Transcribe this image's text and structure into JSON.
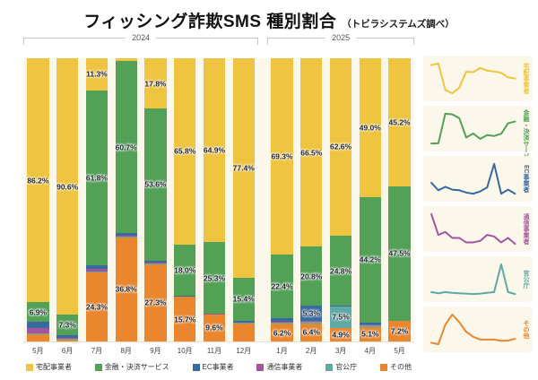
{
  "title": "フィッシング詐欺SMS 種別割合",
  "subtitle": "（トビラシステムズ調べ）",
  "year_groups": [
    {
      "label": "2024",
      "span": 8
    },
    {
      "label": "2025",
      "span": 5
    }
  ],
  "chart_data": {
    "type": "bar",
    "variant": "100-percent-stacked-column-with-sparklines",
    "title": "フィッシング詐欺SMS 種別割合",
    "subtitle": "（トビラシステムズ調べ）",
    "categories": [
      "5月",
      "6月",
      "7月",
      "8月",
      "9月",
      "10月",
      "11月",
      "12月",
      "1月",
      "2月",
      "3月",
      "4月",
      "5月"
    ],
    "year_split_index": 8,
    "ylim": [
      0,
      100
    ],
    "legend_position": "bottom",
    "stack_order_bottom_to_top": [
      "sonota",
      "kankocho",
      "tsushin",
      "ec",
      "kinyu",
      "takuhai"
    ],
    "series": [
      {
        "key": "takuhai",
        "name": "宅配事業者",
        "color": "#efc440",
        "values": [
          86.2,
          90.6,
          11.3,
          1.0,
          17.8,
          65.8,
          64.9,
          77.4,
          69.3,
          66.5,
          62.6,
          49.0,
          45.2
        ]
      },
      {
        "key": "kinyu",
        "name": "金融・決済サービス",
        "color": "#53a057",
        "values": [
          6.9,
          7.3,
          61.8,
          60.7,
          53.6,
          18.0,
          25.3,
          15.4,
          22.4,
          20.8,
          24.8,
          44.2,
          47.5
        ]
      },
      {
        "key": "ec",
        "name": "EC事業者",
        "color": "#39699f",
        "values": [
          2.0,
          0.7,
          1.3,
          0.8,
          0.7,
          0.3,
          0.1,
          0.5,
          1.2,
          5.3,
          0.1,
          0.8,
          0.1
        ]
      },
      {
        "key": "tsushin",
        "name": "通信事業者",
        "color": "#a1569e",
        "values": [
          2.0,
          0.6,
          0.8,
          0.4,
          0.4,
          0.1,
          0.1,
          0.2,
          0.6,
          0.5,
          0.1,
          0.4,
          0.0
        ]
      },
      {
        "key": "kankocho",
        "name": "官公庁",
        "color": "#5fa9a6",
        "values": [
          0.5,
          0.2,
          0.5,
          0.3,
          0.2,
          0.1,
          0.0,
          0.1,
          0.3,
          0.5,
          7.5,
          0.5,
          0.0
        ]
      },
      {
        "key": "sonota",
        "name": "その他",
        "color": "#e9862e",
        "values": [
          2.4,
          0.6,
          24.3,
          36.8,
          27.3,
          15.7,
          9.6,
          6.4,
          6.2,
          6.4,
          4.9,
          5.1,
          7.2
        ]
      }
    ],
    "bar_labels": [
      {
        "m": 0,
        "s": "takuhai",
        "t": "86.2%"
      },
      {
        "m": 0,
        "s": "kinyu",
        "t": "6.9%"
      },
      {
        "m": 1,
        "s": "takuhai",
        "t": "90.6%"
      },
      {
        "m": 1,
        "s": "kinyu",
        "t": "7.3%"
      },
      {
        "m": 2,
        "s": "takuhai",
        "t": "11.3%"
      },
      {
        "m": 2,
        "s": "kinyu",
        "t": "61.8%"
      },
      {
        "m": 2,
        "s": "sonota",
        "t": "24.3%"
      },
      {
        "m": 3,
        "s": "kinyu",
        "t": "60.7%"
      },
      {
        "m": 3,
        "s": "sonota",
        "t": "36.8%"
      },
      {
        "m": 4,
        "s": "takuhai",
        "t": "17.8%"
      },
      {
        "m": 4,
        "s": "kinyu",
        "t": "53.6%"
      },
      {
        "m": 4,
        "s": "sonota",
        "t": "27.3%"
      },
      {
        "m": 5,
        "s": "takuhai",
        "t": "65.8%"
      },
      {
        "m": 5,
        "s": "kinyu",
        "t": "18.0%"
      },
      {
        "m": 5,
        "s": "sonota",
        "t": "15.7%"
      },
      {
        "m": 6,
        "s": "takuhai",
        "t": "64.9%"
      },
      {
        "m": 6,
        "s": "kinyu",
        "t": "25.3%"
      },
      {
        "m": 6,
        "s": "sonota",
        "t": "9.6%"
      },
      {
        "m": 7,
        "s": "takuhai",
        "t": "77.4%"
      },
      {
        "m": 7,
        "s": "kinyu",
        "t": "15.4%"
      },
      {
        "m": 8,
        "s": "takuhai",
        "t": "69.3%"
      },
      {
        "m": 8,
        "s": "kinyu",
        "t": "22.4%"
      },
      {
        "m": 8,
        "s": "sonota",
        "t": "6.2%"
      },
      {
        "m": 9,
        "s": "takuhai",
        "t": "66.5%"
      },
      {
        "m": 9,
        "s": "kinyu",
        "t": "20.8%"
      },
      {
        "m": 9,
        "s": "ec",
        "t": "5.3%"
      },
      {
        "m": 9,
        "s": "sonota",
        "t": "6.4%"
      },
      {
        "m": 10,
        "s": "takuhai",
        "t": "62.6%"
      },
      {
        "m": 10,
        "s": "kinyu",
        "t": "24.8%"
      },
      {
        "m": 10,
        "s": "kankocho",
        "t": "7.5%"
      },
      {
        "m": 10,
        "s": "sonota",
        "t": "4.9%"
      },
      {
        "m": 11,
        "s": "takuhai",
        "t": "49.0%"
      },
      {
        "m": 11,
        "s": "kinyu",
        "t": "44.2%"
      },
      {
        "m": 11,
        "s": "sonota",
        "t": "5.1%"
      },
      {
        "m": 12,
        "s": "takuhai",
        "t": "45.2%"
      },
      {
        "m": 12,
        "s": "kinyu",
        "t": "47.5%"
      },
      {
        "m": 12,
        "s": "sonota",
        "t": "7.2%"
      }
    ]
  },
  "colors": {
    "page_bg": "#ffffff",
    "plot_bg": "#fbf7ea",
    "bar_label_text": "#1e222b",
    "axis_text": "#444444",
    "bracket_line": "#c9c9c9"
  }
}
